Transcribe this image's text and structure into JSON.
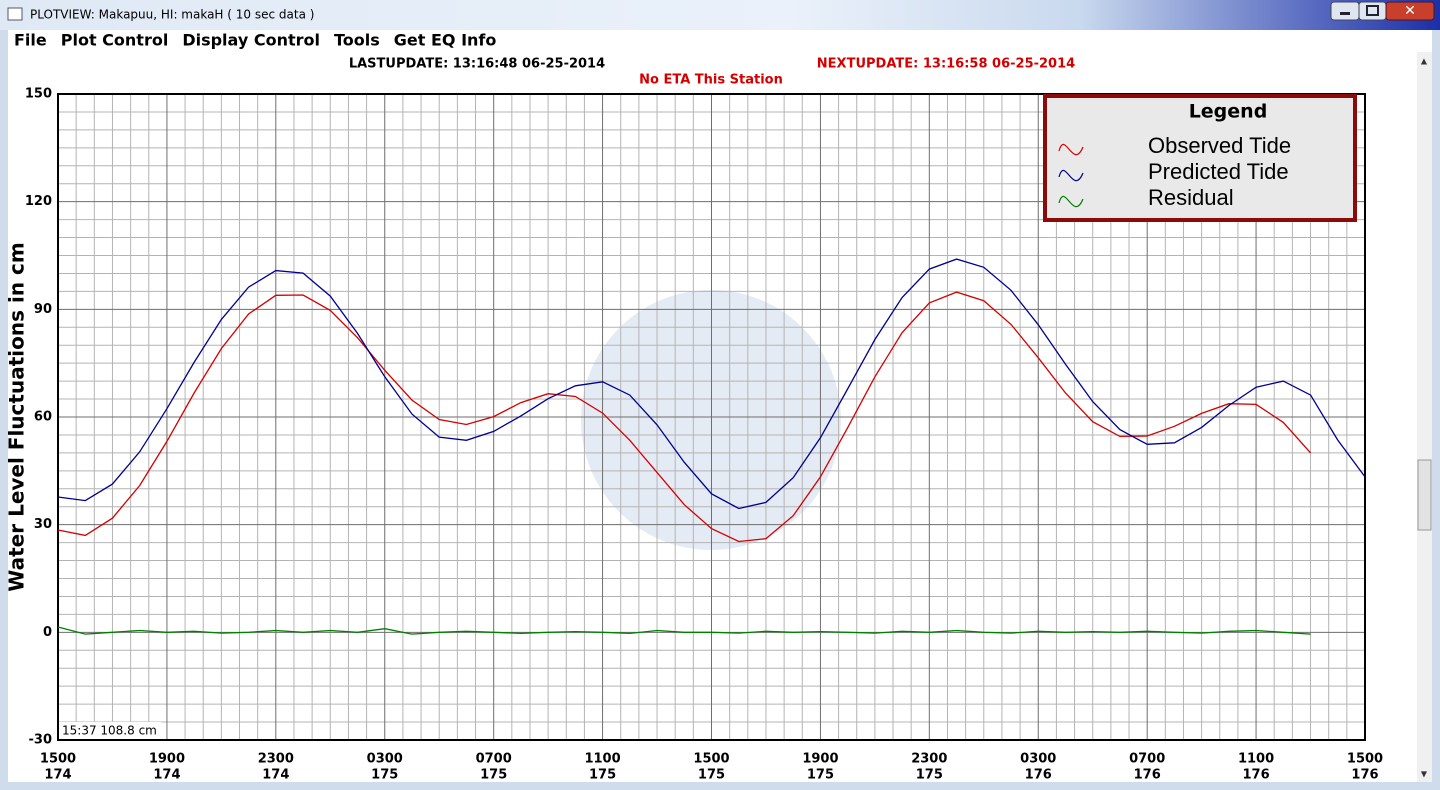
{
  "window": {
    "title": "PLOTVIEW:   Makapuu, HI: makaH ( 10 sec data )",
    "menu": [
      "File",
      "Plot Control",
      "Display Control",
      "Tools",
      "Get EQ Info"
    ]
  },
  "header": {
    "last_update": "LASTUPDATE: 13:16:48 06-25-2014",
    "next_update": "NEXTUPDATE: 13:16:58 06-25-2014",
    "eta": "No ETA This Station"
  },
  "status": {
    "text": "15:37 108.8 cm"
  },
  "chart_data": {
    "type": "line",
    "y_label": "Water Level Fluctuations in cm",
    "legend_title": "Legend",
    "legend": "upper right",
    "grid": true,
    "xlim": [
      174.625,
      176.625
    ],
    "xticks": [
      {
        "value": 174.625,
        "label": "1500",
        "day": "174"
      },
      {
        "value": 174.7917,
        "label": "1900",
        "day": "174"
      },
      {
        "value": 174.9583,
        "label": "2300",
        "day": "174"
      },
      {
        "value": 175.125,
        "label": "0300",
        "day": "175"
      },
      {
        "value": 175.2917,
        "label": "0700",
        "day": "175"
      },
      {
        "value": 175.4583,
        "label": "1100",
        "day": "175"
      },
      {
        "value": 175.625,
        "label": "1500",
        "day": "175"
      },
      {
        "value": 175.7917,
        "label": "1900",
        "day": "175"
      },
      {
        "value": 175.9583,
        "label": "2300",
        "day": "175"
      },
      {
        "value": 176.125,
        "label": "0300",
        "day": "176"
      },
      {
        "value": 176.2917,
        "label": "0700",
        "day": "176"
      },
      {
        "value": 176.4583,
        "label": "1100",
        "day": "176"
      },
      {
        "value": 176.625,
        "label": "1500",
        "day": "176"
      }
    ],
    "ylim": [
      -30,
      150
    ],
    "yticks": [
      -30,
      0,
      30,
      60,
      90,
      120,
      150
    ],
    "x": [
      174.625,
      174.6667,
      174.7083,
      174.75,
      174.7917,
      174.8333,
      174.875,
      174.9167,
      174.9583,
      175,
      175.0417,
      175.0833,
      175.125,
      175.1667,
      175.2083,
      175.25,
      175.2917,
      175.3333,
      175.375,
      175.4167,
      175.4583,
      175.5,
      175.5417,
      175.5833,
      175.625,
      175.6667,
      175.7083,
      175.75,
      175.7917,
      175.8333,
      175.875,
      175.9167,
      175.9583,
      176,
      176.0417,
      176.0833,
      176.125,
      176.1667,
      176.2083,
      176.25,
      176.2917,
      176.3333,
      176.375,
      176.4167,
      176.4583,
      176.5,
      176.5417,
      176.5833,
      176.625
    ],
    "series": [
      {
        "name": "Observed Tide",
        "color": "#d40000",
        "values": [
          28.5,
          27.0,
          31.8,
          40.9,
          53.2,
          66.7,
          79.1,
          88.7,
          93.9,
          94.0,
          89.7,
          82.1,
          73.0,
          64.7,
          59.3,
          57.9,
          60.1,
          64.0,
          66.5,
          65.7,
          61.1,
          53.5,
          44.5,
          35.6,
          28.9,
          25.3,
          26.1,
          32.5,
          43.3,
          57.0,
          71.2,
          83.5,
          91.8,
          94.8,
          92.4,
          85.8,
          76.5,
          66.7,
          58.7,
          54.6,
          54.7,
          57.4,
          61.0,
          63.7,
          63.5,
          58.5,
          50.0,
          null,
          null
        ]
      },
      {
        "name": "Predicted Tide",
        "color": "#000090",
        "values": [
          37.7,
          36.7,
          41.3,
          50.3,
          62.3,
          75.2,
          87.2,
          96.2,
          100.8,
          100.1,
          93.7,
          83.3,
          71.2,
          60.8,
          54.4,
          53.5,
          56.0,
          60.3,
          65.1,
          68.7,
          69.8,
          66.1,
          57.8,
          47.4,
          38.6,
          34.5,
          36.2,
          43.1,
          54.2,
          67.8,
          81.6,
          93.3,
          101.2,
          104,
          101.7,
          95.3,
          85.7,
          74.7,
          64.3,
          56.5,
          52.4,
          52.8,
          57.1,
          63.2,
          68.3,
          70,
          66.1,
          53.6,
          43.3
        ]
      },
      {
        "name": "Residual",
        "color": "#008000",
        "values": [
          1.5,
          -0.5,
          0,
          0.5,
          0,
          0.3,
          -0.2,
          0,
          0.5,
          0,
          0.5,
          0,
          1,
          -0.5,
          0,
          0.3,
          0,
          -0.3,
          0,
          0.2,
          0,
          -0.3,
          0.5,
          0,
          0,
          -0.2,
          0.3,
          0,
          0.2,
          0,
          -0.2,
          0.3,
          0,
          0.5,
          0,
          -0.2,
          0.3,
          0,
          0.2,
          0,
          0.3,
          0,
          -0.2,
          0.3,
          0.5,
          0,
          -0.5,
          null,
          null
        ]
      }
    ]
  }
}
